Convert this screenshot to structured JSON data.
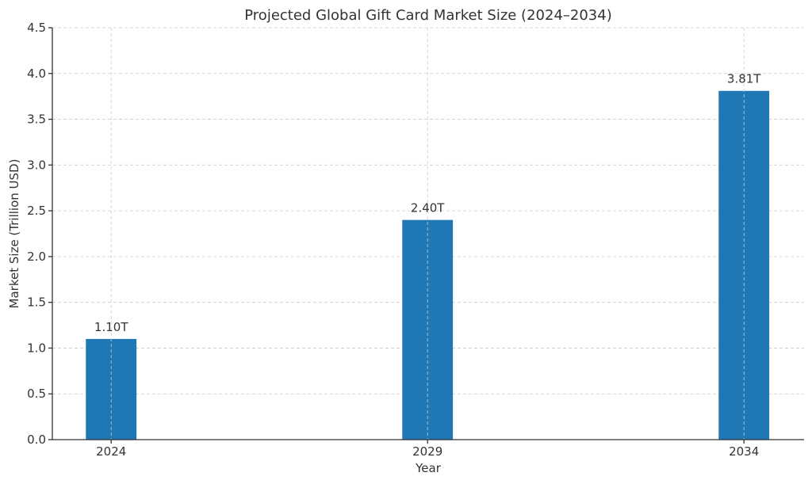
{
  "chart_data": {
    "type": "bar",
    "title": "Projected Global Gift Card Market Size (2024–2034)",
    "xlabel": "Year",
    "ylabel": "Market Size (Trillion USD)",
    "categories": [
      "2024",
      "2029",
      "2034"
    ],
    "x": [
      2024,
      2029,
      2034
    ],
    "values": [
      1.1,
      2.4,
      3.81
    ],
    "data_labels": [
      "1.10T",
      "2.40T",
      "3.81T"
    ],
    "ylim": [
      0,
      4.5
    ],
    "xlim": [
      2023.07,
      2034.95
    ],
    "yticks": [
      "0.0",
      "0.5",
      "1.0",
      "1.5",
      "2.0",
      "2.5",
      "3.0",
      "3.5",
      "4.0",
      "4.5"
    ],
    "grid": true,
    "bar_color": "#1f77b4"
  }
}
